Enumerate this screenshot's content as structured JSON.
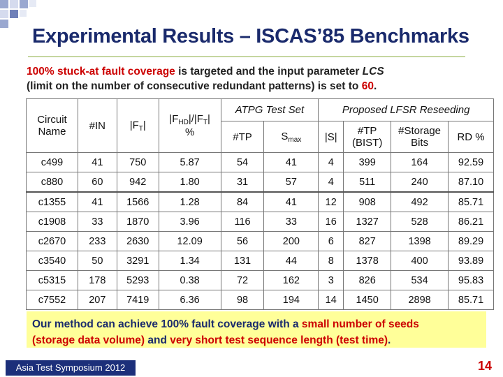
{
  "title": "Experimental Results – ISCAS’85 Benchmarks",
  "intro": {
    "p1": "100% stuck-at fault coverage",
    "p2": " is targeted and the input parameter ",
    "p3": "LCS",
    "p4": "(limit on the number of consecutive redundant patterns) is set to ",
    "p5": "60",
    "p6": "."
  },
  "table": {
    "h_circuit": "Circuit Name",
    "h_in": "#IN",
    "h_ft_a": "|F",
    "h_ft_b": "T",
    "h_ft_c": "|",
    "h_ratio_a": "|F",
    "h_ratio_b": "HD",
    "h_ratio_c": "|/|F",
    "h_ratio_d": "T",
    "h_ratio_e": "|",
    "h_ratio_f": "%",
    "h_atpg": "ATPG Test Set",
    "h_lfsr": "Proposed LFSR Reseeding",
    "h_tp": "#TP",
    "h_smax_a": "S",
    "h_smax_b": "max",
    "h_s": "|S|",
    "h_tpbist": "#TP (BIST)",
    "h_storage": "#Storage Bits",
    "h_rd": "RD %",
    "rows": [
      [
        "c499",
        "41",
        "750",
        "5.87",
        "54",
        "41",
        "4",
        "399",
        "164",
        "92.59"
      ],
      [
        "c880",
        "60",
        "942",
        "1.80",
        "31",
        "57",
        "4",
        "511",
        "240",
        "87.10"
      ],
      [
        "c1355",
        "41",
        "1566",
        "1.28",
        "84",
        "41",
        "12",
        "908",
        "492",
        "85.71"
      ],
      [
        "c1908",
        "33",
        "1870",
        "3.96",
        "116",
        "33",
        "16",
        "1327",
        "528",
        "86.21"
      ],
      [
        "c2670",
        "233",
        "2630",
        "12.09",
        "56",
        "200",
        "6",
        "827",
        "1398",
        "89.29"
      ],
      [
        "c3540",
        "50",
        "3291",
        "1.34",
        "131",
        "44",
        "8",
        "1378",
        "400",
        "93.89"
      ],
      [
        "c5315",
        "178",
        "5293",
        "0.38",
        "72",
        "162",
        "3",
        "826",
        "534",
        "95.83"
      ],
      [
        "c7552",
        "207",
        "7419",
        "6.36",
        "98",
        "194",
        "14",
        "1450",
        "2898",
        "85.71"
      ]
    ]
  },
  "summary": {
    "s1": "Our method can achieve 100% fault coverage with a ",
    "s2": "small number of seeds",
    "s3": "(storage data volume)",
    "s4": " and ",
    "s5": "very short test sequence length (test time)",
    "s6": "."
  },
  "footer": "Asia Test Symposium 2012",
  "page_number": "14",
  "colors": {
    "title": "#1a2a6c",
    "accent_red": "#cc0000",
    "summary_bg": "#ffff99",
    "footer_bg": "#1c2f7a"
  }
}
